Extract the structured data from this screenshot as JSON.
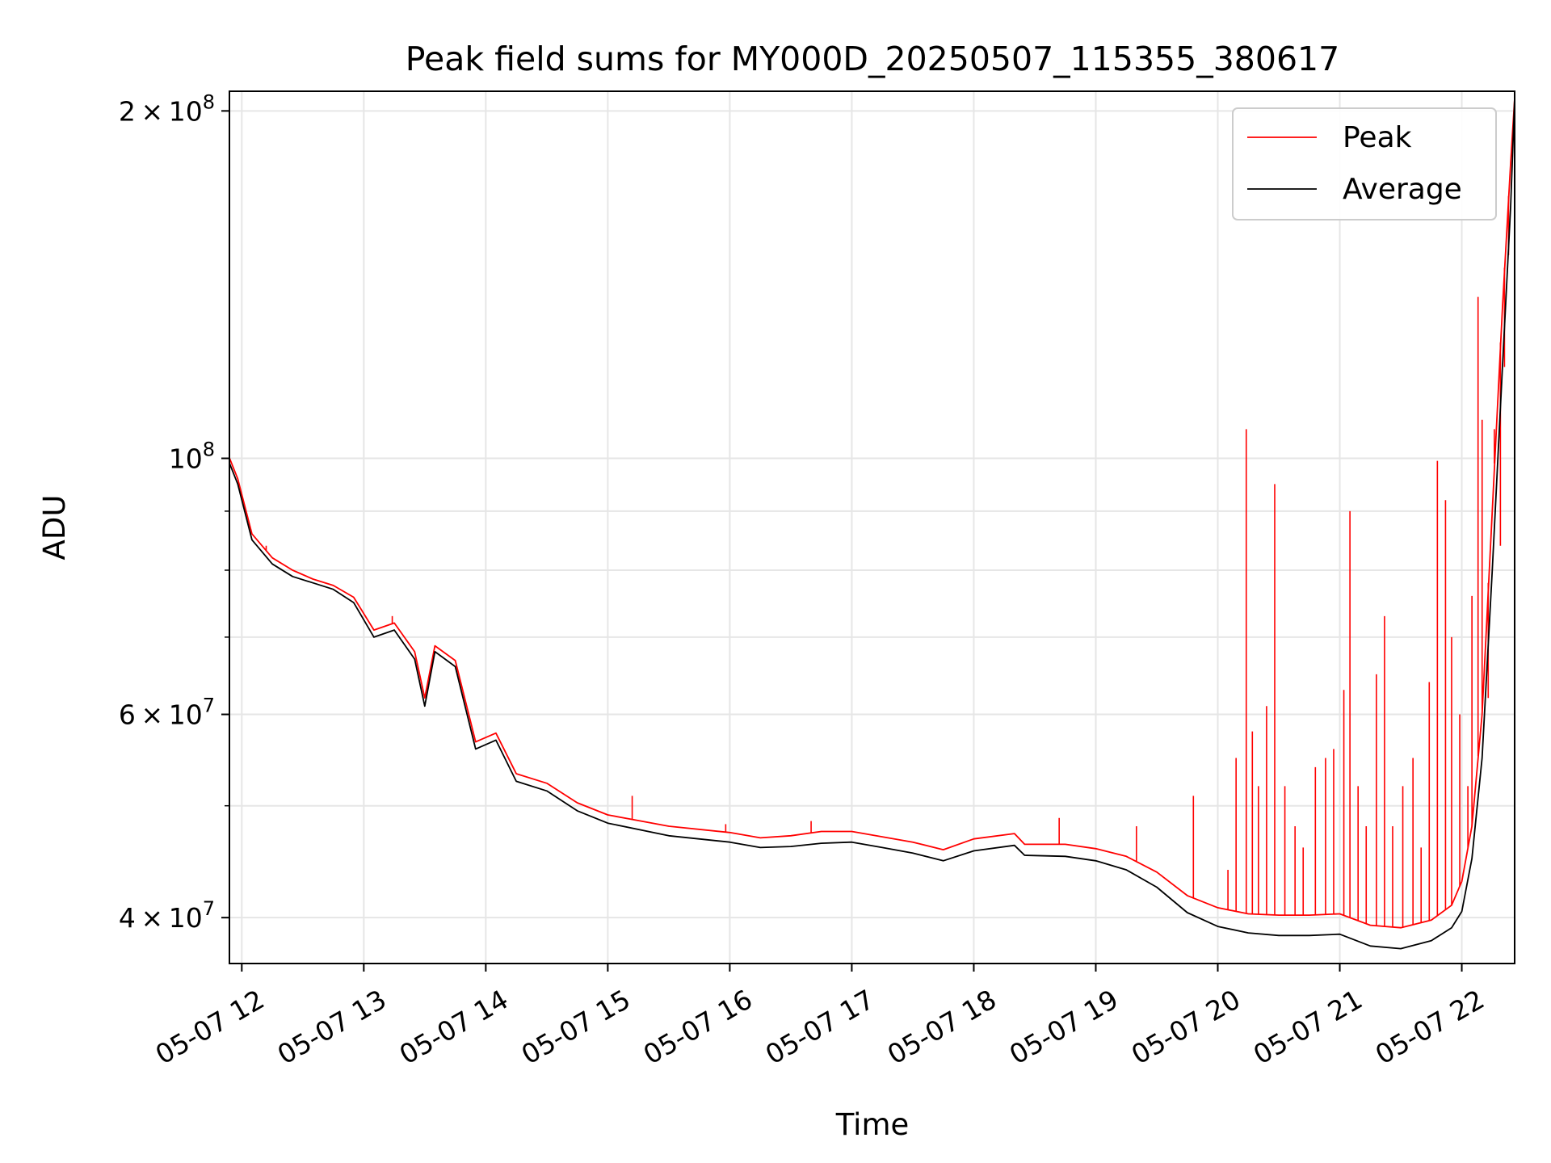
{
  "chart_data": {
    "type": "line",
    "title": "Peak field sums for MY000D_20250507_115355_380617",
    "xlabel": "Time",
    "ylabel": "ADU",
    "yscale": "log",
    "ylim": [
      36500000,
      208000000
    ],
    "xlim": [
      "2025-05-07 11:53:55",
      "2025-05-07 22:26:00"
    ],
    "x_ticks": [
      {
        "label": "05-07 12",
        "time": "2025-05-07 12:00"
      },
      {
        "label": "05-07 13",
        "time": "2025-05-07 13:00"
      },
      {
        "label": "05-07 14",
        "time": "2025-05-07 14:00"
      },
      {
        "label": "05-07 15",
        "time": "2025-05-07 15:00"
      },
      {
        "label": "05-07 16",
        "time": "2025-05-07 16:00"
      },
      {
        "label": "05-07 17",
        "time": "2025-05-07 17:00"
      },
      {
        "label": "05-07 18",
        "time": "2025-05-07 18:00"
      },
      {
        "label": "05-07 19",
        "time": "2025-05-07 19:00"
      },
      {
        "label": "05-07 20",
        "time": "2025-05-07 20:00"
      },
      {
        "label": "05-07 21",
        "time": "2025-05-07 21:00"
      },
      {
        "label": "05-07 22",
        "time": "2025-05-07 22:00"
      }
    ],
    "y_ticks": [
      {
        "value": 40000000,
        "mant": "4",
        "exp": "7"
      },
      {
        "value": 60000000,
        "mant": "6",
        "exp": "7"
      },
      {
        "value": 100000000,
        "mant": "",
        "exp": "8"
      },
      {
        "value": 200000000,
        "mant": "2",
        "exp": "8"
      }
    ],
    "y_minor": [
      50000000,
      70000000,
      80000000,
      90000000
    ],
    "grid": true,
    "legend": {
      "position": "top-right"
    },
    "series": [
      {
        "name": "Average",
        "color": "#000000",
        "points": [
          [
            "2025-05-07 11:54",
            99000000
          ],
          [
            "2025-05-07 11:58",
            95000000
          ],
          [
            "2025-05-07 12:05",
            85000000
          ],
          [
            "2025-05-07 12:15",
            81000000
          ],
          [
            "2025-05-07 12:25",
            79000000
          ],
          [
            "2025-05-07 12:35",
            78000000
          ],
          [
            "2025-05-07 12:45",
            77000000
          ],
          [
            "2025-05-07 12:55",
            75000000
          ],
          [
            "2025-05-07 13:05",
            70000000
          ],
          [
            "2025-05-07 13:15",
            71000000
          ],
          [
            "2025-05-07 13:25",
            67000000
          ],
          [
            "2025-05-07 13:30",
            61000000
          ],
          [
            "2025-05-07 13:35",
            68000000
          ],
          [
            "2025-05-07 13:45",
            66000000
          ],
          [
            "2025-05-07 13:55",
            56000000
          ],
          [
            "2025-05-07 14:05",
            57000000
          ],
          [
            "2025-05-07 14:15",
            52500000
          ],
          [
            "2025-05-07 14:30",
            51500000
          ],
          [
            "2025-05-07 14:45",
            49500000
          ],
          [
            "2025-05-07 15:00",
            48300000
          ],
          [
            "2025-05-07 15:30",
            47100000
          ],
          [
            "2025-05-07 16:00",
            46500000
          ],
          [
            "2025-05-07 16:15",
            46000000
          ],
          [
            "2025-05-07 16:30",
            46100000
          ],
          [
            "2025-05-07 16:45",
            46400000
          ],
          [
            "2025-05-07 17:00",
            46500000
          ],
          [
            "2025-05-07 17:15",
            46000000
          ],
          [
            "2025-05-07 17:30",
            45500000
          ],
          [
            "2025-05-07 17:45",
            44800000
          ],
          [
            "2025-05-07 18:00",
            45700000
          ],
          [
            "2025-05-07 18:20",
            46200000
          ],
          [
            "2025-05-07 18:25",
            45300000
          ],
          [
            "2025-05-07 18:45",
            45200000
          ],
          [
            "2025-05-07 19:00",
            44800000
          ],
          [
            "2025-05-07 19:15",
            44000000
          ],
          [
            "2025-05-07 19:30",
            42500000
          ],
          [
            "2025-05-07 19:45",
            40400000
          ],
          [
            "2025-05-07 20:00",
            39300000
          ],
          [
            "2025-05-07 20:15",
            38800000
          ],
          [
            "2025-05-07 20:30",
            38600000
          ],
          [
            "2025-05-07 20:45",
            38600000
          ],
          [
            "2025-05-07 21:00",
            38700000
          ],
          [
            "2025-05-07 21:15",
            37800000
          ],
          [
            "2025-05-07 21:30",
            37600000
          ],
          [
            "2025-05-07 21:45",
            38200000
          ],
          [
            "2025-05-07 21:55",
            39200000
          ],
          [
            "2025-05-07 22:00",
            40500000
          ],
          [
            "2025-05-07 22:05",
            45000000
          ],
          [
            "2025-05-07 22:10",
            55000000
          ],
          [
            "2025-05-07 22:15",
            80000000
          ],
          [
            "2025-05-07 22:20",
            120000000
          ],
          [
            "2025-05-07 22:24",
            165000000
          ],
          [
            "2025-05-07 22:26",
            205000000
          ]
        ]
      },
      {
        "name": "Peak",
        "color": "#ff0000",
        "points": [
          [
            "2025-05-07 11:54",
            100000000
          ],
          [
            "2025-05-07 11:58",
            96000000
          ],
          [
            "2025-05-07 12:05",
            86000000
          ],
          [
            "2025-05-07 12:15",
            82000000
          ],
          [
            "2025-05-07 12:25",
            80000000
          ],
          [
            "2025-05-07 12:35",
            78600000
          ],
          [
            "2025-05-07 12:45",
            77600000
          ],
          [
            "2025-05-07 12:55",
            75800000
          ],
          [
            "2025-05-07 13:05",
            71000000
          ],
          [
            "2025-05-07 13:15",
            72000000
          ],
          [
            "2025-05-07 13:25",
            68000000
          ],
          [
            "2025-05-07 13:30",
            62000000
          ],
          [
            "2025-05-07 13:35",
            68800000
          ],
          [
            "2025-05-07 13:45",
            66800000
          ],
          [
            "2025-05-07 13:55",
            56800000
          ],
          [
            "2025-05-07 14:05",
            57800000
          ],
          [
            "2025-05-07 14:15",
            53300000
          ],
          [
            "2025-05-07 14:30",
            52300000
          ],
          [
            "2025-05-07 14:45",
            50300000
          ],
          [
            "2025-05-07 15:00",
            49100000
          ],
          [
            "2025-05-07 15:30",
            48000000
          ],
          [
            "2025-05-07 16:00",
            47400000
          ],
          [
            "2025-05-07 16:15",
            46900000
          ],
          [
            "2025-05-07 16:30",
            47100000
          ],
          [
            "2025-05-07 16:45",
            47500000
          ],
          [
            "2025-05-07 17:00",
            47500000
          ],
          [
            "2025-05-07 17:15",
            47000000
          ],
          [
            "2025-05-07 17:30",
            46500000
          ],
          [
            "2025-05-07 17:45",
            45800000
          ],
          [
            "2025-05-07 18:00",
            46800000
          ],
          [
            "2025-05-07 18:20",
            47300000
          ],
          [
            "2025-05-07 18:25",
            46300000
          ],
          [
            "2025-05-07 18:45",
            46300000
          ],
          [
            "2025-05-07 19:00",
            45900000
          ],
          [
            "2025-05-07 19:15",
            45200000
          ],
          [
            "2025-05-07 19:30",
            43800000
          ],
          [
            "2025-05-07 19:45",
            41800000
          ],
          [
            "2025-05-07 20:00",
            40800000
          ],
          [
            "2025-05-07 20:15",
            40300000
          ],
          [
            "2025-05-07 20:30",
            40200000
          ],
          [
            "2025-05-07 20:45",
            40200000
          ],
          [
            "2025-05-07 21:00",
            40300000
          ],
          [
            "2025-05-07 21:15",
            39400000
          ],
          [
            "2025-05-07 21:30",
            39200000
          ],
          [
            "2025-05-07 21:45",
            39800000
          ],
          [
            "2025-05-07 21:55",
            41000000
          ],
          [
            "2025-05-07 22:00",
            43000000
          ],
          [
            "2025-05-07 22:05",
            48000000
          ],
          [
            "2025-05-07 22:10",
            60000000
          ],
          [
            "2025-05-07 22:15",
            90000000
          ],
          [
            "2025-05-07 22:20",
            135000000
          ],
          [
            "2025-05-07 22:24",
            180000000
          ],
          [
            "2025-05-07 22:26",
            205000000
          ]
        ],
        "spikes": [
          [
            "2025-05-07 12:12",
            84000000
          ],
          [
            "2025-05-07 13:14",
            73000000
          ],
          [
            "2025-05-07 15:12",
            51000000
          ],
          [
            "2025-05-07 15:58",
            48200000
          ],
          [
            "2025-05-07 16:40",
            48500000
          ],
          [
            "2025-05-07 18:42",
            48800000
          ],
          [
            "2025-05-07 19:20",
            48000000
          ],
          [
            "2025-05-07 19:48",
            51000000
          ],
          [
            "2025-05-07 20:05",
            44000000
          ],
          [
            "2025-05-07 20:09",
            55000000
          ],
          [
            "2025-05-07 20:14",
            106000000
          ],
          [
            "2025-05-07 20:17",
            58000000
          ],
          [
            "2025-05-07 20:20",
            52000000
          ],
          [
            "2025-05-07 20:24",
            61000000
          ],
          [
            "2025-05-07 20:28",
            95000000
          ],
          [
            "2025-05-07 20:33",
            52000000
          ],
          [
            "2025-05-07 20:38",
            48000000
          ],
          [
            "2025-05-07 20:42",
            46000000
          ],
          [
            "2025-05-07 20:48",
            54000000
          ],
          [
            "2025-05-07 20:53",
            55000000
          ],
          [
            "2025-05-07 20:57",
            56000000
          ],
          [
            "2025-05-07 21:02",
            63000000
          ],
          [
            "2025-05-07 21:05",
            90000000
          ],
          [
            "2025-05-07 21:09",
            52000000
          ],
          [
            "2025-05-07 21:13",
            48000000
          ],
          [
            "2025-05-07 21:18",
            65000000
          ],
          [
            "2025-05-07 21:22",
            73000000
          ],
          [
            "2025-05-07 21:26",
            48000000
          ],
          [
            "2025-05-07 21:31",
            52000000
          ],
          [
            "2025-05-07 21:36",
            55000000
          ],
          [
            "2025-05-07 21:40",
            46000000
          ],
          [
            "2025-05-07 21:44",
            64000000
          ],
          [
            "2025-05-07 21:48",
            99500000
          ],
          [
            "2025-05-07 21:52",
            92000000
          ],
          [
            "2025-05-07 21:55",
            70000000
          ],
          [
            "2025-05-07 21:59",
            60000000
          ],
          [
            "2025-05-07 22:03",
            52000000
          ],
          [
            "2025-05-07 22:05",
            76000000
          ],
          [
            "2025-05-07 22:08",
            138000000
          ],
          [
            "2025-05-07 22:10",
            108000000
          ],
          [
            "2025-05-07 22:13",
            62000000
          ],
          [
            "2025-05-07 22:16",
            106000000
          ],
          [
            "2025-05-07 22:19",
            84000000
          ],
          [
            "2025-05-07 22:21",
            120000000
          ],
          [
            "2025-05-07 22:23",
            150000000
          ]
        ]
      }
    ]
  }
}
